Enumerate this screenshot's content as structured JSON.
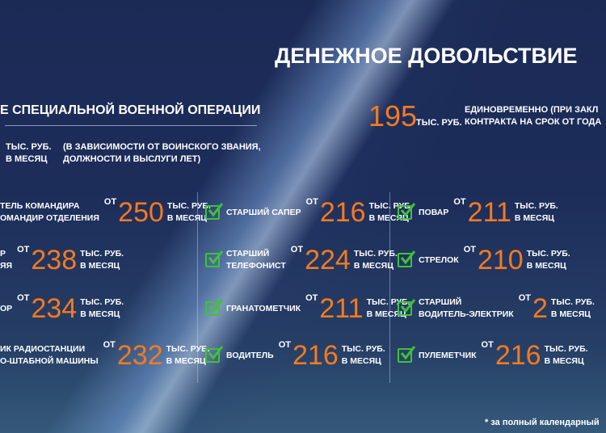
{
  "title": "ДЕНЕЖНОЕ ДОВОЛЬСТВИЕ",
  "section_heading": "Е СПЕЦИАЛЬНОЙ ВОЕННОЙ ОПЕРАЦИИ",
  "base": {
    "unit1": "ТЫС. РУБ.",
    "unit2": "В МЕСЯЦ",
    "note1": "(В ЗАВИСИМОСТИ ОТ ВОИНСКОГО ЗВАНИЯ,",
    "note2": "ДОЛЖНОСТИ И ВЫСЛУГИ ЛЕТ)"
  },
  "lump": {
    "value": "195",
    "unit": "ТЫС. РУБ.",
    "text1": "ЕДИНОВРЕМЕННО (ПРИ ЗАКЛ",
    "text2": "КОНТРАКТА НА СРОК ОТ ГОДА"
  },
  "ot": "ОТ",
  "unit1": "ТЫС. РУБ.",
  "unit2": "В МЕСЯЦ",
  "col1": [
    {
      "l1": "ТЕЛЬ КОМАНДИРА",
      "l2": "ОМАНДИР ОТДЕЛЕНИЯ",
      "value": "250"
    },
    {
      "l1": "Р",
      "l2": "ЯЯ",
      "value": "238"
    },
    {
      "l1": "ОР",
      "l2": "",
      "value": "234"
    },
    {
      "l1": "ИК РАДИОСТАНЦИИ",
      "l2": "О-ШТАБНОЙ МАШИНЫ",
      "value": "232"
    }
  ],
  "col2": [
    {
      "l1": "СТАРШИЙ САПЕР",
      "l2": "",
      "value": "216"
    },
    {
      "l1": "СТАРШИЙ",
      "l2": "ТЕЛЕФОНИСТ",
      "value": "224"
    },
    {
      "l1": "ГРАНАТОМЕТЧИК",
      "l2": "",
      "value": "211"
    },
    {
      "l1": "ВОДИТЕЛЬ",
      "l2": "",
      "value": "216"
    }
  ],
  "col3": [
    {
      "l1": "ПОВАР",
      "l2": "",
      "value": "211"
    },
    {
      "l1": "СТРЕЛОК",
      "l2": "",
      "value": "210"
    },
    {
      "l1": "СТАРШИЙ",
      "l2": "ВОДИТЕЛЬ-ЭЛЕКТРИК",
      "value": "2"
    },
    {
      "l1": "ПУЛЕМЕТЧИК",
      "l2": "",
      "value": "216"
    }
  ],
  "footnote": "* за полный календарный",
  "colors": {
    "accent": "#f47a20",
    "check": "#3fc23a",
    "background": "#1d2d5a"
  }
}
